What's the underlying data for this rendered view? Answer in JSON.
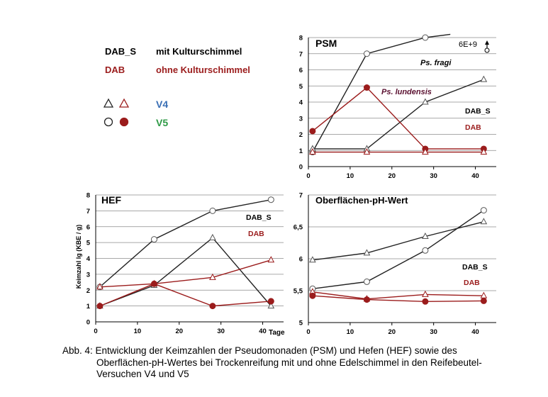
{
  "colors": {
    "dab_s": "#222222",
    "dab": "#9b1c1c",
    "v4": "#3a6fb5",
    "v5": "#2e9a46",
    "annot_dark": "#5a1030",
    "grid": "#8c8c8c"
  },
  "legend": {
    "dab_s_label": "DAB_S",
    "dab_s_desc": "mit Kulturschimmel",
    "dab_label": "DAB",
    "dab_desc": "ohne Kulturschimmel",
    "v4_label": "V4",
    "v5_label": "V5"
  },
  "caption": {
    "line1": "Abb. 4: Entwicklung der Keimzahlen der Pseudomonaden (PSM) und Hefen (HEF) sowie des",
    "line2": "Oberflächen-pH-Wertes bei Trockenreifung mit und ohne Edelschimmel in den Reifebeutel-",
    "line3": "Versuchen V4 und V5"
  },
  "chart_data": [
    {
      "id": "psm",
      "type": "line",
      "title": "PSM",
      "xlabel": "",
      "ylabel": "",
      "xlim": [
        0,
        45
      ],
      "ylim": [
        0,
        8
      ],
      "xticks": [
        "0",
        "10",
        "20",
        "30",
        "40"
      ],
      "yticks": [
        "0",
        "1",
        "2",
        "3",
        "4",
        "5",
        "6",
        "7",
        "8"
      ],
      "grid": "horizontal",
      "annotations": [
        "6E+9",
        "Ps. fragi",
        "Ps. lundensis",
        "DAB_S",
        "DAB"
      ],
      "series": [
        {
          "name": "DAB_S V5",
          "group": "dab_s",
          "marker": "circle",
          "filled": false,
          "x": [
            1,
            14,
            28,
            34
          ],
          "y": [
            0.9,
            7.0,
            8.0,
            8.2
          ]
        },
        {
          "name": "DAB_S V4",
          "group": "dab_s",
          "marker": "triangle",
          "filled": false,
          "x": [
            1,
            14,
            28,
            42
          ],
          "y": [
            1.1,
            1.1,
            4.0,
            5.4
          ]
        },
        {
          "name": "DAB V5",
          "group": "dab",
          "marker": "circle",
          "filled": true,
          "x": [
            1,
            14,
            28,
            42
          ],
          "y": [
            2.2,
            4.9,
            1.1,
            1.1
          ]
        },
        {
          "name": "DAB V4",
          "group": "dab",
          "marker": "triangle",
          "filled": false,
          "x": [
            1,
            14,
            28,
            42
          ],
          "y": [
            0.9,
            0.9,
            0.9,
            0.9
          ]
        }
      ]
    },
    {
      "id": "hef",
      "type": "line",
      "title": "HEF",
      "xlabel": "Tage",
      "ylabel": "Keimzahl lg (KBE / g)",
      "xlim": [
        0,
        45
      ],
      "ylim": [
        0,
        8
      ],
      "xticks": [
        "0",
        "10",
        "20",
        "30",
        "40"
      ],
      "yticks": [
        "0",
        "1",
        "2",
        "3",
        "4",
        "5",
        "6",
        "7",
        "8"
      ],
      "grid": "horizontal",
      "annotations": [
        "DAB_S",
        "DAB"
      ],
      "series": [
        {
          "name": "DAB_S V5",
          "group": "dab_s",
          "marker": "circle",
          "filled": false,
          "x": [
            1,
            14,
            28,
            42
          ],
          "y": [
            2.2,
            5.2,
            7.0,
            7.7
          ]
        },
        {
          "name": "DAB_S V4",
          "group": "dab_s",
          "marker": "triangle",
          "filled": false,
          "x": [
            1,
            14,
            28,
            42
          ],
          "y": [
            1.0,
            2.3,
            5.3,
            1.0
          ]
        },
        {
          "name": "DAB V4",
          "group": "dab",
          "marker": "triangle",
          "filled": false,
          "x": [
            1,
            14,
            28,
            42
          ],
          "y": [
            2.2,
            2.4,
            2.8,
            3.9
          ]
        },
        {
          "name": "DAB V5",
          "group": "dab",
          "marker": "circle",
          "filled": true,
          "x": [
            1,
            14,
            28,
            42
          ],
          "y": [
            1.0,
            2.4,
            1.0,
            1.3
          ]
        }
      ]
    },
    {
      "id": "ph",
      "type": "line",
      "title": "Oberflächen-pH-Wert",
      "xlabel": "",
      "ylabel": "",
      "xlim": [
        0,
        45
      ],
      "ylim": [
        5,
        7
      ],
      "xticks": [
        "0",
        "10",
        "20",
        "30",
        "40"
      ],
      "yticks": [
        "5",
        "5,5",
        "6",
        "6,5",
        "7"
      ],
      "grid": "horizontal",
      "annotations": [
        "DAB_S",
        "DAB"
      ],
      "series": [
        {
          "name": "DAB_S V5",
          "group": "dab_s",
          "marker": "circle",
          "filled": false,
          "x": [
            1,
            14,
            28,
            42
          ],
          "y": [
            5.53,
            5.64,
            6.13,
            6.76
          ]
        },
        {
          "name": "DAB_S V4",
          "group": "dab_s",
          "marker": "triangle",
          "filled": false,
          "x": [
            1,
            14,
            28,
            42
          ],
          "y": [
            5.98,
            6.09,
            6.35,
            6.58
          ]
        },
        {
          "name": "DAB V4",
          "group": "dab",
          "marker": "triangle",
          "filled": false,
          "x": [
            1,
            14,
            28,
            42
          ],
          "y": [
            5.48,
            5.37,
            5.44,
            5.42
          ]
        },
        {
          "name": "DAB V5",
          "group": "dab",
          "marker": "circle",
          "filled": true,
          "x": [
            1,
            14,
            28,
            42
          ],
          "y": [
            5.42,
            5.36,
            5.33,
            5.34
          ]
        }
      ]
    }
  ]
}
